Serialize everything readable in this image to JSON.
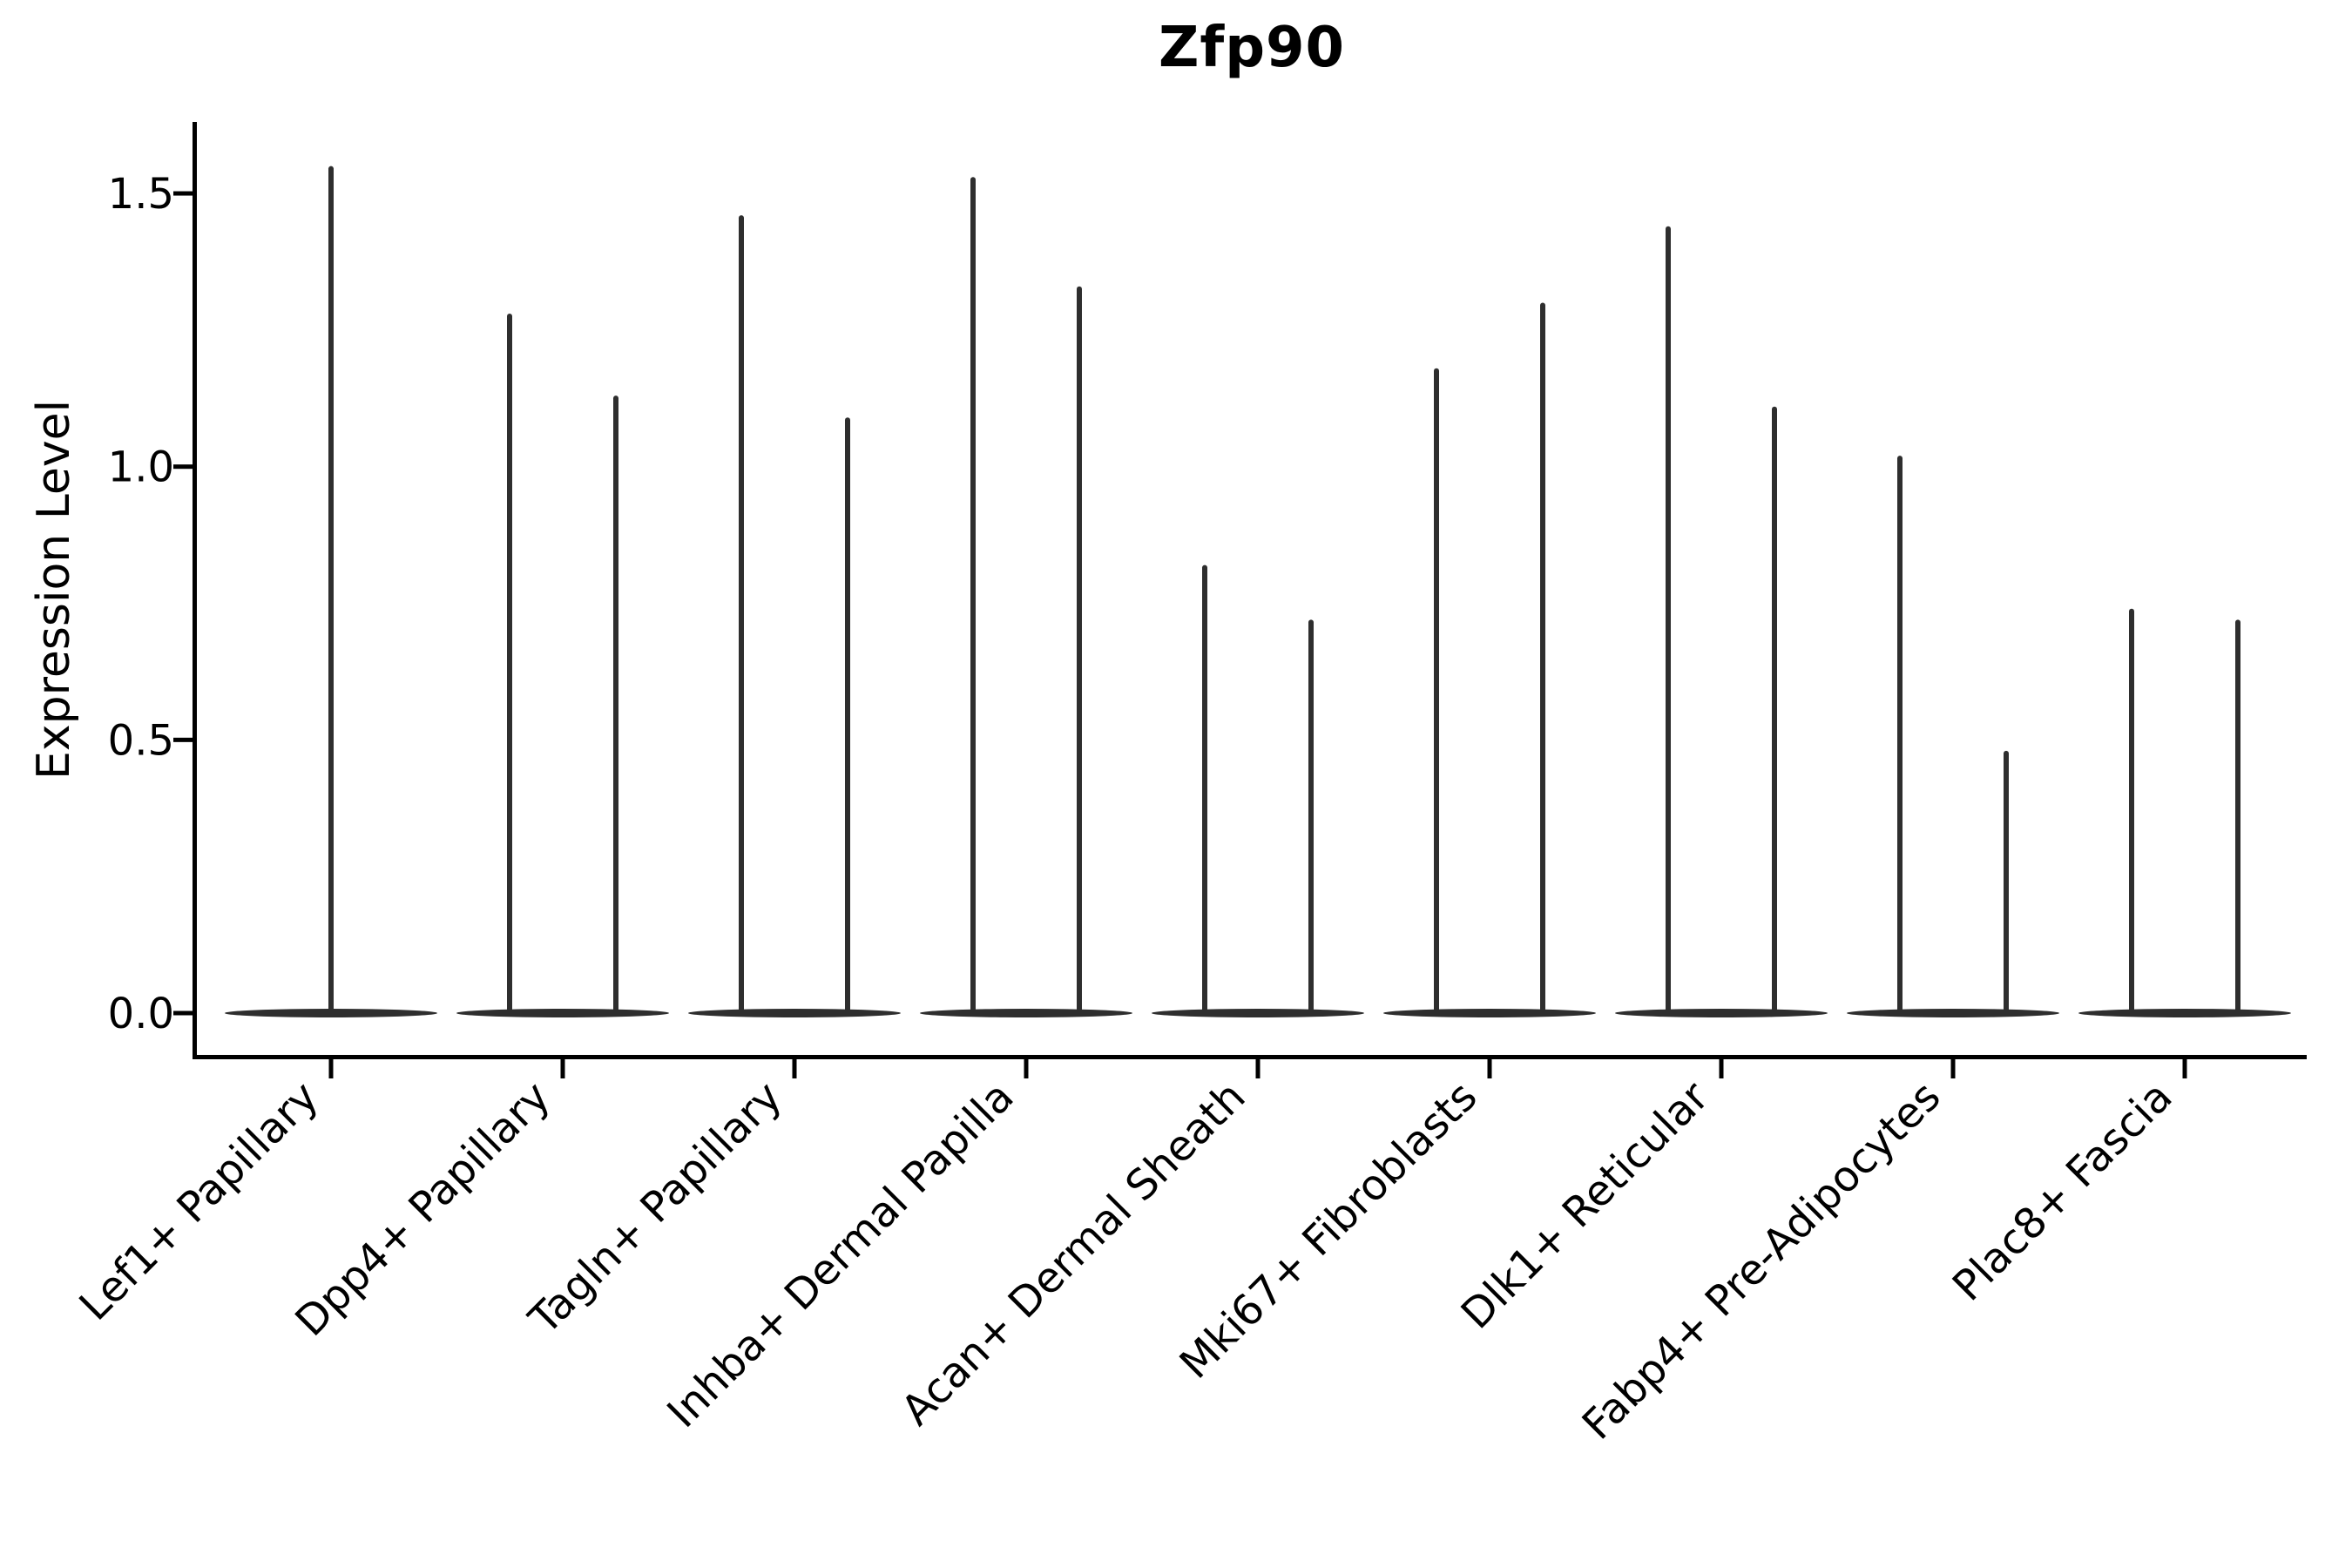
{
  "title": "Zfp90",
  "y_axis": {
    "label": "Expression Level",
    "tick_labels": [
      "0.0",
      "0.5",
      "1.0",
      "1.5"
    ],
    "tick_values": [
      0.0,
      0.5,
      1.0,
      1.5
    ]
  },
  "chart_data": {
    "type": "violin",
    "title": "Zfp90",
    "xlabel": "",
    "ylabel": "Expression Level",
    "ylim": [
      -0.08,
      1.63
    ],
    "grid": false,
    "legend": "none",
    "baseline_value": 0.0,
    "violin_color": "#2e2e2e",
    "axis_color": "#000000",
    "background_color": "#ffffff",
    "description": "Each cell type shows a flat wide violin base at expression 0 with thin vertical density spikes; max expression per spike listed below.",
    "categories": [
      "Lef1+ Papillary",
      "Dpp4+ Papillary",
      "Tagln+ Papillary",
      "Inhba+ Dermal Papilla",
      "Acan+ Dermal Sheath",
      "Mki67+ Fibroblasts",
      "Dlk1+ Reticular",
      "Fabp4+ Pre-Adipocytes",
      "Plac8+ Fascia"
    ],
    "violins": [
      {
        "category": "Lef1+ Papillary",
        "spikes": [
          {
            "side": "center",
            "max": 1.55
          }
        ]
      },
      {
        "category": "Dpp4+ Papillary",
        "spikes": [
          {
            "side": "left",
            "max": 1.28
          },
          {
            "side": "right",
            "max": 1.13
          }
        ]
      },
      {
        "category": "Tagln+ Papillary",
        "spikes": [
          {
            "side": "left",
            "max": 1.46
          },
          {
            "side": "right",
            "max": 1.09
          }
        ]
      },
      {
        "category": "Inhba+ Dermal Papilla",
        "spikes": [
          {
            "side": "left",
            "max": 1.53
          },
          {
            "side": "right",
            "max": 1.33
          }
        ]
      },
      {
        "category": "Acan+ Dermal Sheath",
        "spikes": [
          {
            "side": "left",
            "max": 0.82
          },
          {
            "side": "right",
            "max": 0.72
          }
        ]
      },
      {
        "category": "Mki67+ Fibroblasts",
        "spikes": [
          {
            "side": "left",
            "max": 1.18
          },
          {
            "side": "right",
            "max": 1.3
          }
        ]
      },
      {
        "category": "Dlk1+ Reticular",
        "spikes": [
          {
            "side": "left",
            "max": 1.44
          },
          {
            "side": "right",
            "max": 1.11
          }
        ]
      },
      {
        "category": "Fabp4+ Pre-Adipocytes",
        "spikes": [
          {
            "side": "left",
            "max": 1.02
          },
          {
            "side": "right",
            "max": 0.48
          }
        ]
      },
      {
        "category": "Plac8+ Fascia",
        "spikes": [
          {
            "side": "left",
            "max": 0.74
          },
          {
            "side": "right",
            "max": 0.72
          }
        ]
      }
    ]
  }
}
